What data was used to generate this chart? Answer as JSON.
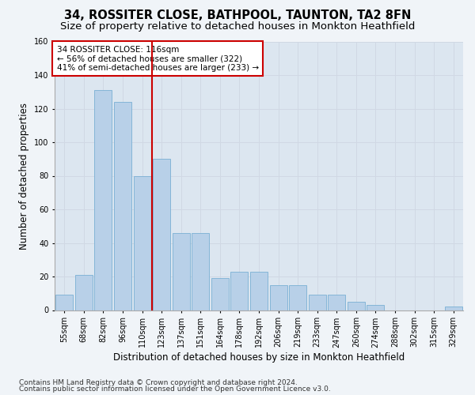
{
  "title": "34, ROSSITER CLOSE, BATHPOOL, TAUNTON, TA2 8FN",
  "subtitle": "Size of property relative to detached houses in Monkton Heathfield",
  "xlabel": "Distribution of detached houses by size in Monkton Heathfield",
  "ylabel": "Number of detached properties",
  "categories": [
    "55sqm",
    "68sqm",
    "82sqm",
    "96sqm",
    "110sqm",
    "123sqm",
    "137sqm",
    "151sqm",
    "164sqm",
    "178sqm",
    "192sqm",
    "206sqm",
    "219sqm",
    "233sqm",
    "247sqm",
    "260sqm",
    "274sqm",
    "288sqm",
    "302sqm",
    "315sqm",
    "329sqm"
  ],
  "values": [
    9,
    21,
    131,
    124,
    80,
    90,
    46,
    46,
    19,
    23,
    23,
    15,
    15,
    9,
    9,
    5,
    3,
    0,
    0,
    0,
    2
  ],
  "bar_color": "#b8d0e8",
  "bar_edge_color": "#7aafd4",
  "reference_line_color": "#cc0000",
  "annotation_line1": "34 ROSSITER CLOSE: 116sqm",
  "annotation_line2": "← 56% of detached houses are smaller (322)",
  "annotation_line3": "41% of semi-detached houses are larger (233) →",
  "annotation_box_color": "#ffffff",
  "annotation_box_edge": "#cc0000",
  "ylim": [
    0,
    160
  ],
  "yticks": [
    0,
    20,
    40,
    60,
    80,
    100,
    120,
    140,
    160
  ],
  "grid_color": "#d0d8e4",
  "bg_color": "#dce6f0",
  "fig_bg_color": "#f0f4f8",
  "footer_line1": "Contains HM Land Registry data © Crown copyright and database right 2024.",
  "footer_line2": "Contains public sector information licensed under the Open Government Licence v3.0.",
  "title_fontsize": 10.5,
  "subtitle_fontsize": 9.5,
  "xlabel_fontsize": 8.5,
  "ylabel_fontsize": 8.5,
  "tick_fontsize": 7,
  "annot_fontsize": 7.5,
  "footer_fontsize": 6.5
}
